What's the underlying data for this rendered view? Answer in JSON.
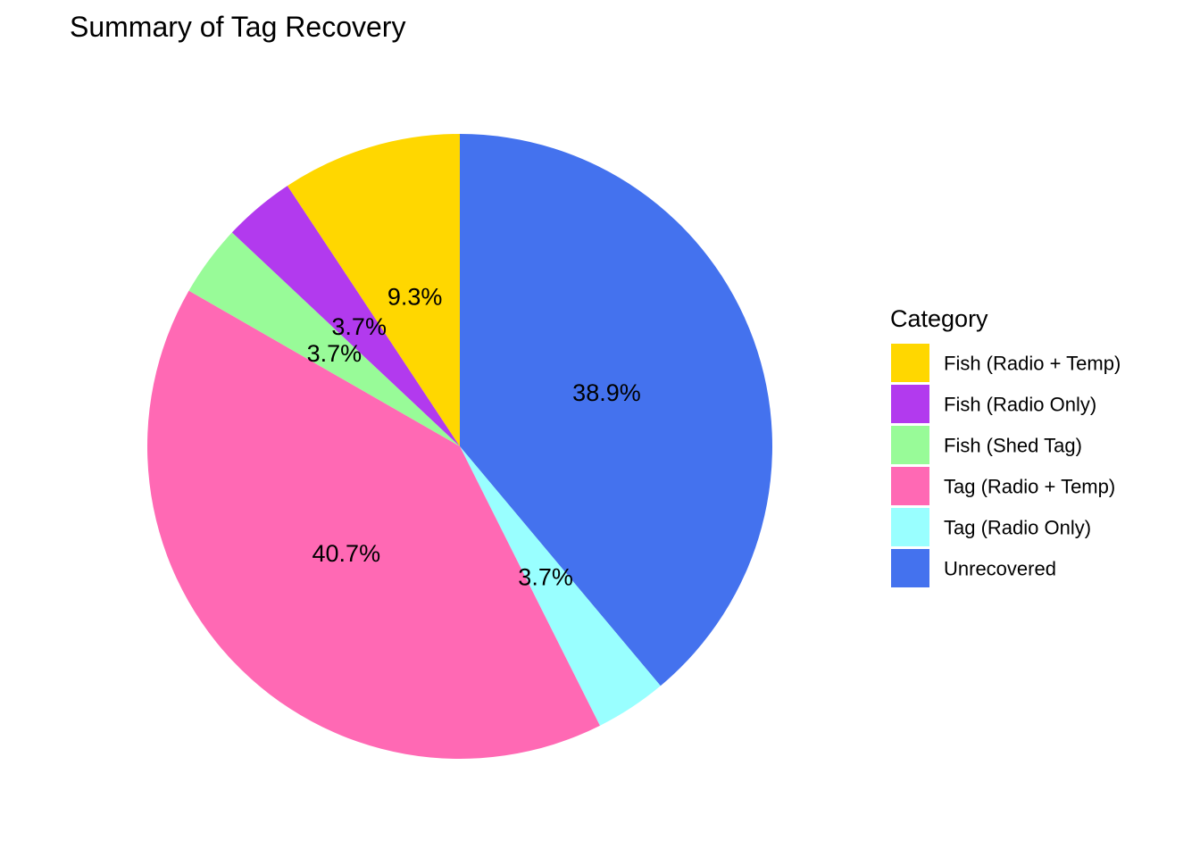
{
  "chart_data": {
    "type": "pie",
    "title": "Summary of Tag Recovery",
    "legend": {
      "title": "Category",
      "placement": "right"
    },
    "slices": [
      {
        "label": "Unrecovered",
        "value": 38.9,
        "display": "38.9%",
        "color": "#4472EE"
      },
      {
        "label": "Tag (Radio Only)",
        "value": 3.7,
        "display": "3.7%",
        "color": "#99FFFF"
      },
      {
        "label": "Tag (Radio + Temp)",
        "value": 40.7,
        "display": "40.7%",
        "color": "#FF69B4"
      },
      {
        "label": "Fish (Shed Tag)",
        "value": 3.7,
        "display": "3.7%",
        "color": "#98FB98"
      },
      {
        "label": "Fish (Radio Only)",
        "value": 3.7,
        "display": "3.7%",
        "color": "#B23AEE"
      },
      {
        "label": "Fish (Radio + Temp)",
        "value": 9.3,
        "display": "9.3%",
        "color": "#FFD700"
      }
    ],
    "legend_order": [
      "Fish (Radio + Temp)",
      "Fish (Radio Only)",
      "Fish (Shed Tag)",
      "Tag (Radio + Temp)",
      "Tag (Radio Only)",
      "Unrecovered"
    ]
  }
}
